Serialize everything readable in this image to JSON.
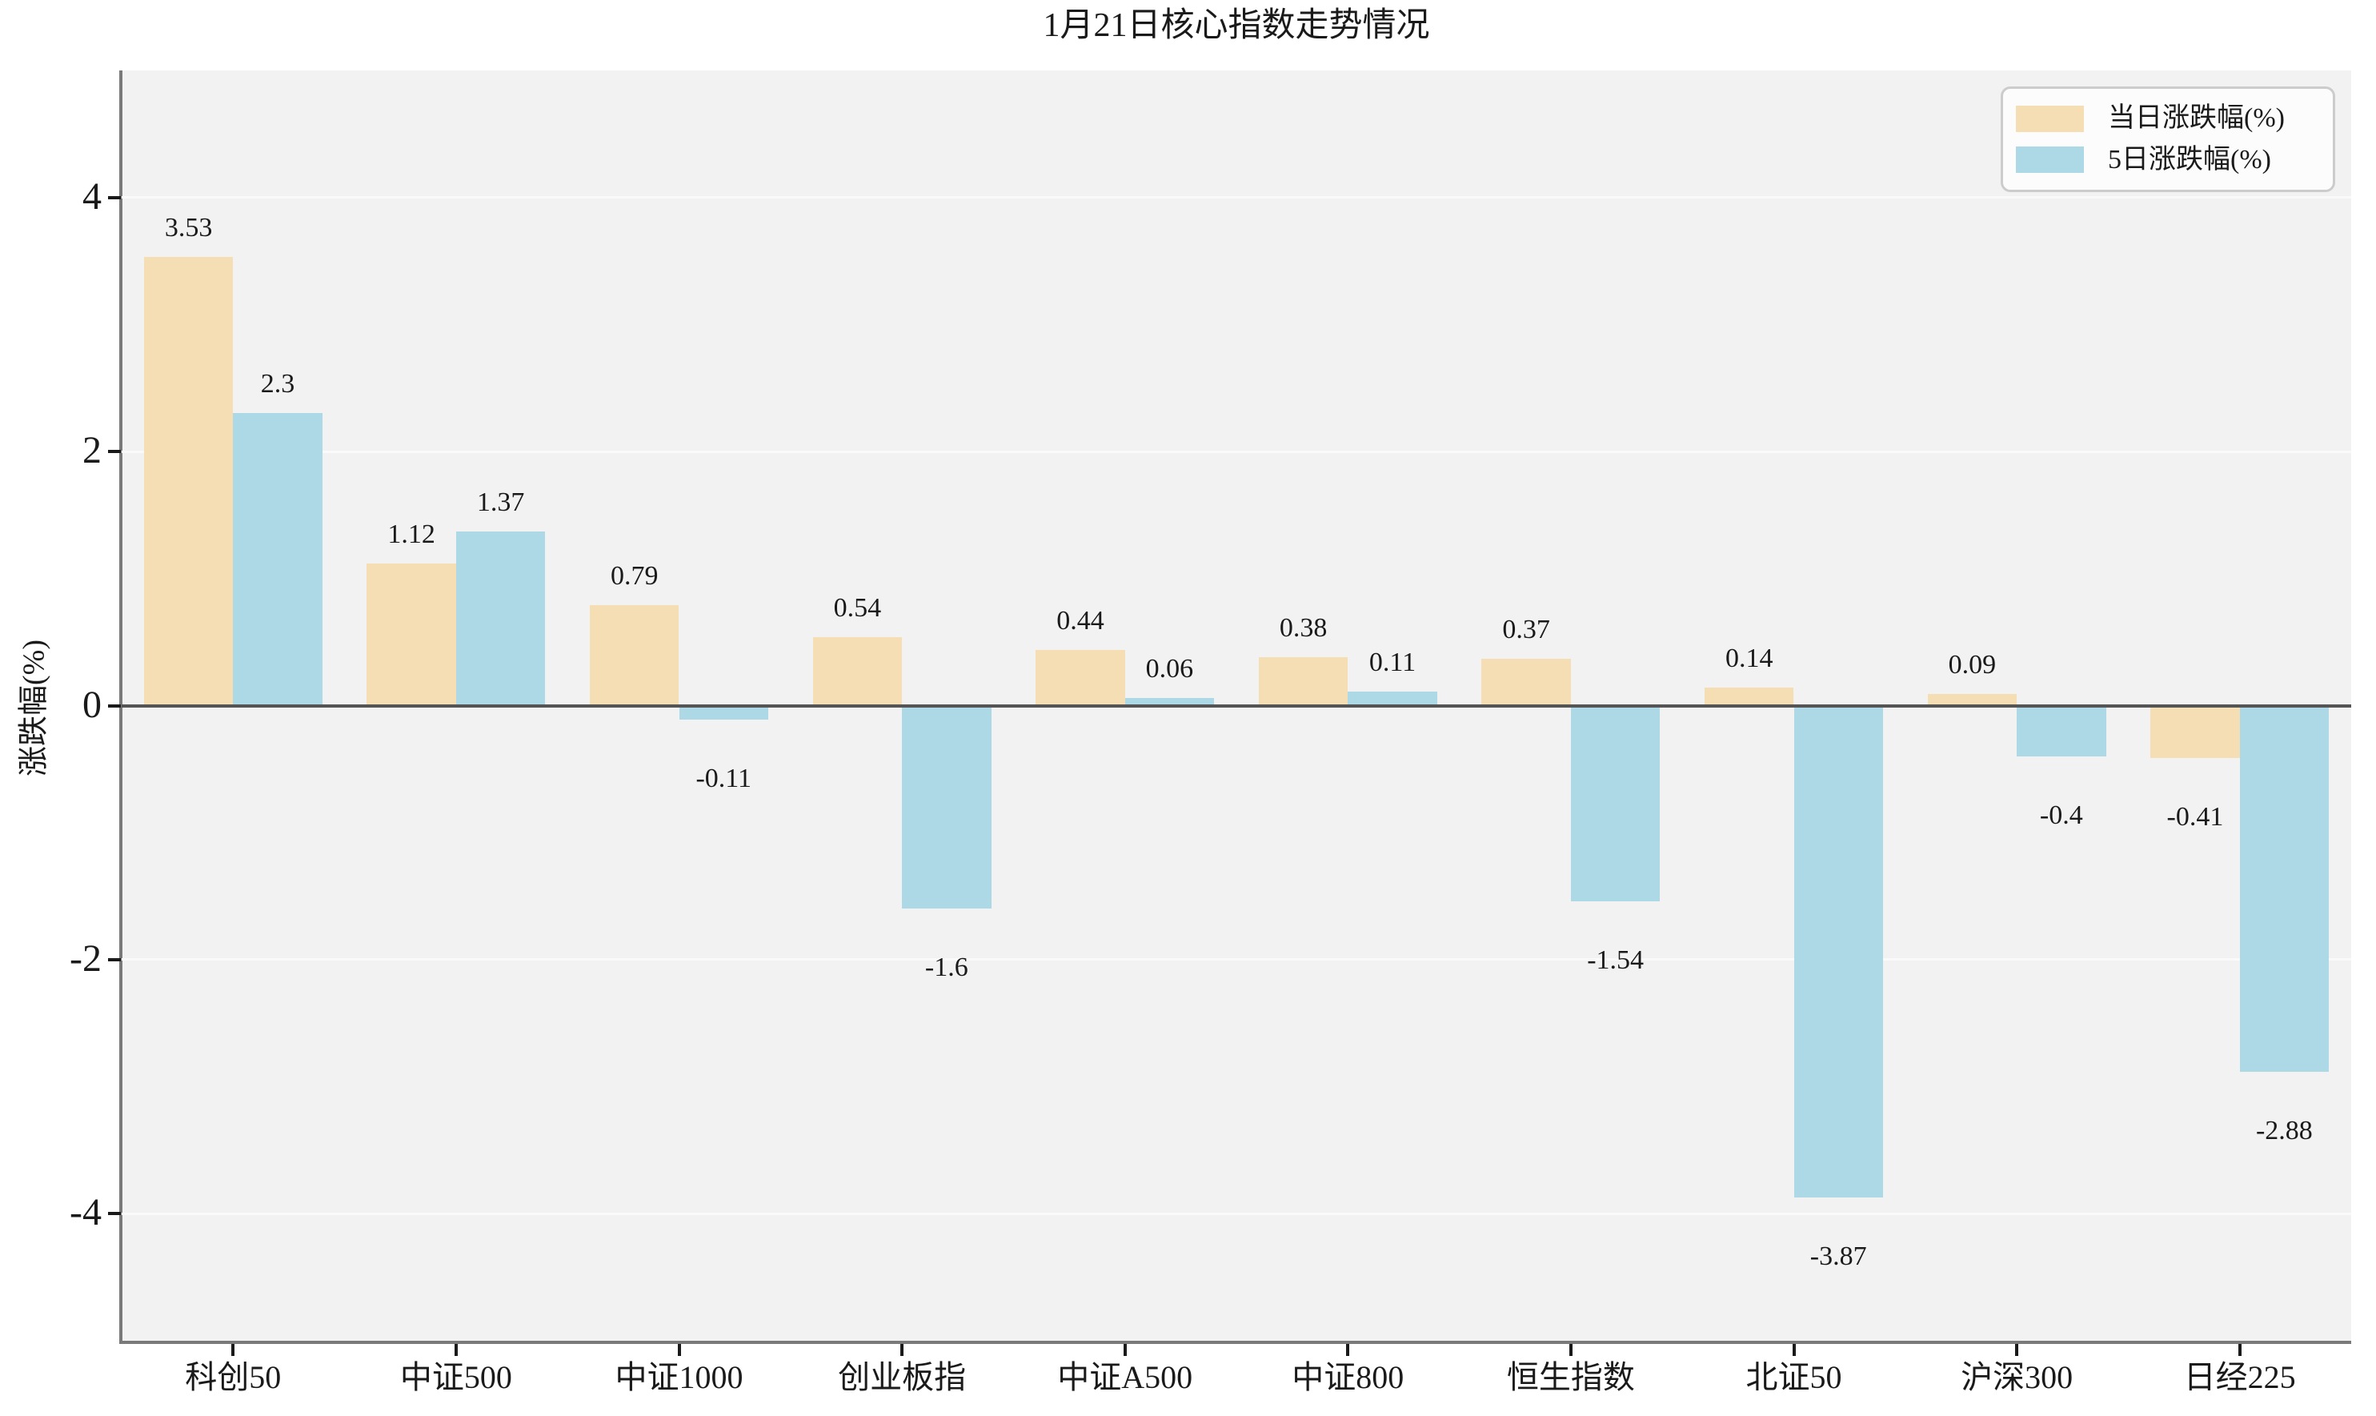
{
  "chart_data": {
    "type": "bar",
    "title": "1月21日核心指数走势情况",
    "ylabel": "涨跌幅(%)",
    "xlabel": "",
    "ylim": [
      -5,
      5
    ],
    "yticks": [
      4,
      2,
      0,
      -2,
      -4
    ],
    "grid": "horizontal white gridlines on light-gray plot background",
    "legend_position": "upper-right",
    "zero_baseline": true,
    "categories": [
      "科创50",
      "中证500",
      "中证1000",
      "创业板指",
      "中证A500",
      "中证800",
      "恒生指数",
      "北证50",
      "沪深300",
      "日经225"
    ],
    "series": [
      {
        "name": "当日涨跌幅(%)",
        "color": "#F5DEB3",
        "values": [
          3.53,
          1.12,
          0.79,
          0.54,
          0.44,
          0.38,
          0.37,
          0.14,
          0.09,
          -0.41
        ]
      },
      {
        "name": "5日涨跌幅(%)",
        "color": "#ADD8E6",
        "values": [
          2.3,
          1.37,
          -0.11,
          -1.6,
          0.06,
          0.11,
          -1.54,
          -3.87,
          -0.4,
          -2.88
        ]
      }
    ]
  },
  "style": {
    "figure_bg": "#FFFFFF",
    "plot_bg": "#F2F2F2",
    "grid_color": "#FAFAFA",
    "zero_line_color": "#555555",
    "spine_color": "#7A7A7A",
    "text_color": "#1A1A1A",
    "legend_bg": "#FCFCFC",
    "legend_border": "#CCCCCC"
  }
}
